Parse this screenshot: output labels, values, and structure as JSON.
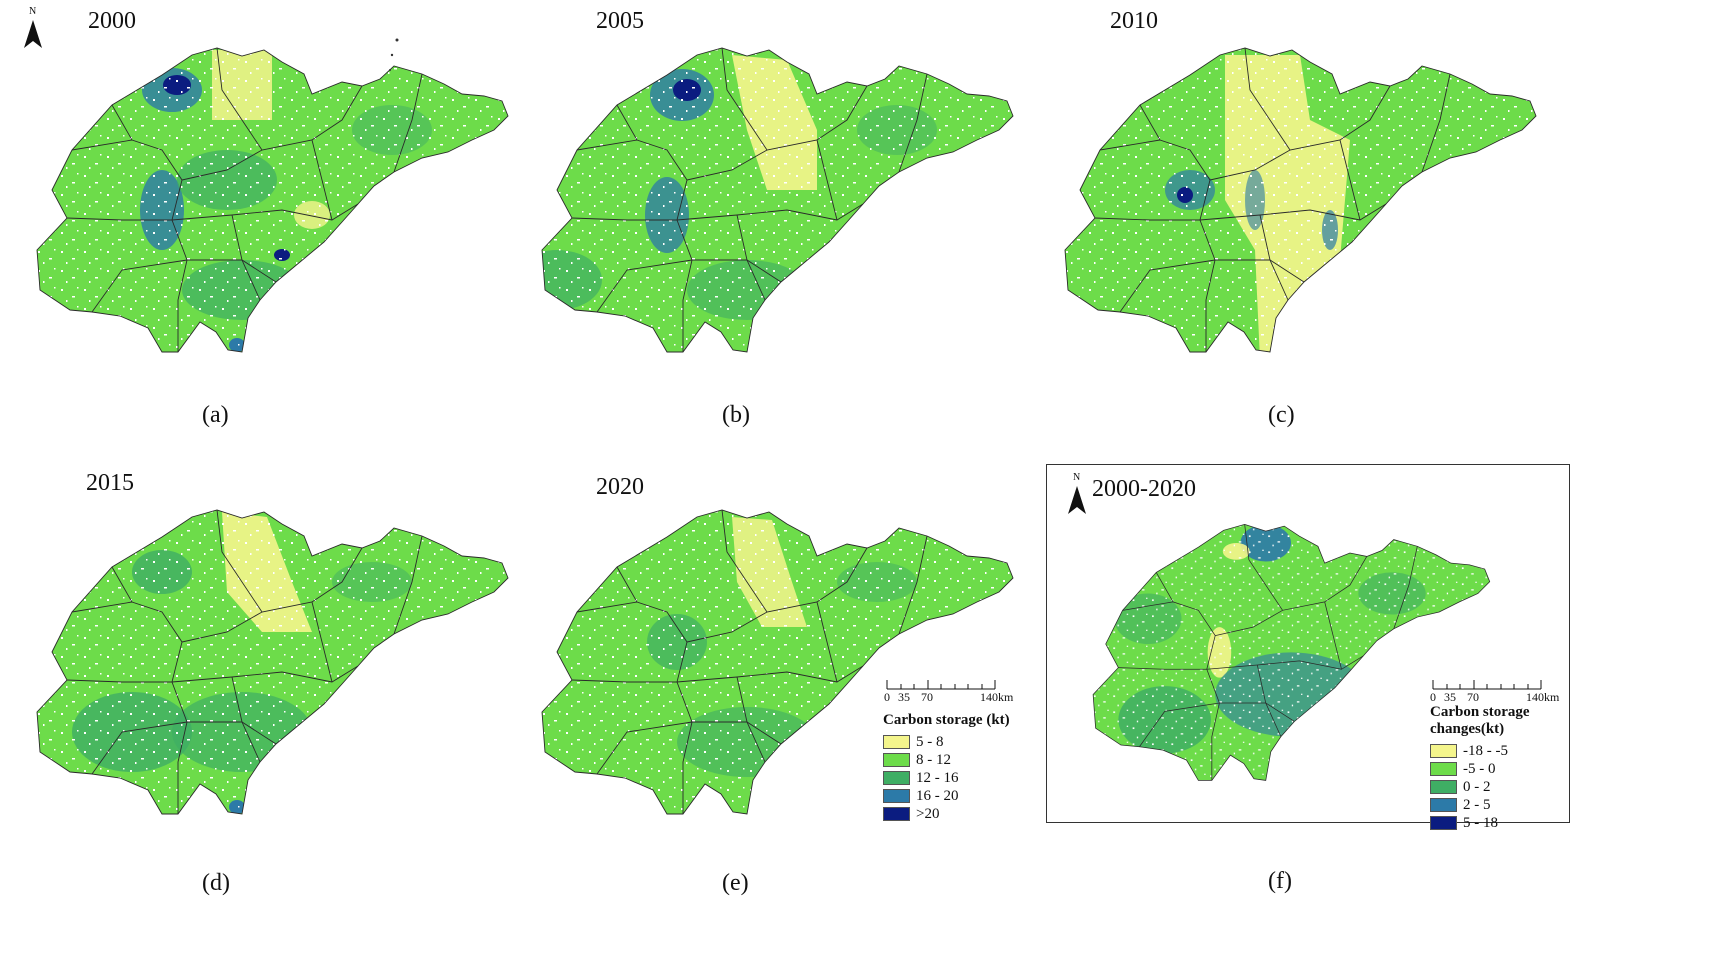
{
  "colors": {
    "c1": "#f4f58c",
    "c2": "#6ddc4a",
    "c3": "#3fae64",
    "c4": "#2c7aa8",
    "c5": "#0b1c80",
    "boundary": "#2a2a2a"
  },
  "north_label": "N",
  "panels": [
    {
      "id": "a",
      "year": "2000",
      "caption": "(a)"
    },
    {
      "id": "b",
      "year": "2005",
      "caption": "(b)"
    },
    {
      "id": "c",
      "year": "2010",
      "caption": "(c)"
    },
    {
      "id": "d",
      "year": "2015",
      "caption": "(d)"
    },
    {
      "id": "e",
      "year": "2020",
      "caption": "(e)"
    },
    {
      "id": "f",
      "year": "2000-2020",
      "caption": "(f)"
    }
  ],
  "scale": {
    "ticks": [
      "0",
      "35",
      "70",
      "140km"
    ]
  },
  "legend_storage": {
    "title": "Carbon storage (kt)",
    "items": [
      {
        "label": "5 - 8",
        "color": "#f4f58c"
      },
      {
        "label": "8 - 12",
        "color": "#6ddc4a"
      },
      {
        "label": "12 - 16",
        "color": "#3fae64"
      },
      {
        "label": "16 - 20",
        "color": "#2c7aa8"
      },
      {
        "label": ">20",
        "color": "#0b1c80"
      }
    ]
  },
  "legend_change": {
    "title_line1": "Carbon storage",
    "title_line2": "changes(kt)",
    "items": [
      {
        "label": "-18 - -5",
        "color": "#f4f58c"
      },
      {
        "label": "-5 - 0",
        "color": "#6ddc4a"
      },
      {
        "label": "0 - 2",
        "color": "#3fae64"
      },
      {
        "label": "2 - 5",
        "color": "#2c7aa8"
      },
      {
        "label": "5 - 18",
        "color": "#0b1c80"
      }
    ]
  }
}
